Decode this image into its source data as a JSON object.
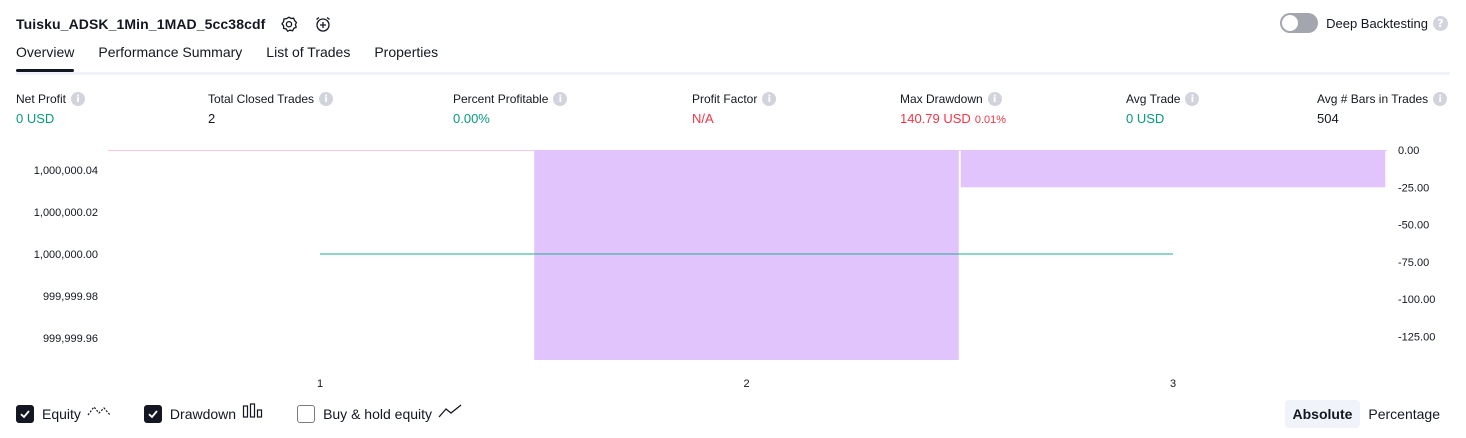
{
  "header": {
    "strategy_name": "Tuisku_ADSK_1Min_1MAD_5cc38cdf",
    "settings_icon": "settings-icon",
    "alert_icon": "alarm-plus-icon"
  },
  "deep_backtesting": {
    "label": "Deep Backtesting",
    "enabled": false,
    "help": "?"
  },
  "tabs": [
    {
      "label": "Overview",
      "active": true
    },
    {
      "label": "Performance Summary",
      "active": false
    },
    {
      "label": "List of Trades",
      "active": false
    },
    {
      "label": "Properties",
      "active": false
    }
  ],
  "metrics": [
    {
      "label": "Net Profit",
      "value": "0 USD",
      "color": "#089981"
    },
    {
      "label": "Total Closed Trades",
      "value": "2",
      "color": "#131722"
    },
    {
      "label": "Percent Profitable",
      "value": "0.00%",
      "color": "#089981"
    },
    {
      "label": "Profit Factor",
      "value": "N/A",
      "color": "#f23645"
    },
    {
      "label": "Max Drawdown",
      "value": "140.79 USD",
      "sub": "0.01%",
      "color": "#f23645"
    },
    {
      "label": "Avg Trade",
      "value": "0 USD",
      "color": "#089981"
    },
    {
      "label": "Avg # Bars in Trades",
      "value": "504",
      "color": "#131722"
    }
  ],
  "chart_data": {
    "type": "bar",
    "categories": [
      "1",
      "2",
      "3"
    ],
    "equity": {
      "type": "line",
      "x": [
        1,
        2,
        3
      ],
      "values": [
        1000000.0,
        1000000.0,
        1000000.0
      ],
      "color": "#22ab94"
    },
    "drawdown": {
      "type": "bar",
      "trade_ranges": [
        [
          1.5,
          2.5
        ],
        [
          2.5,
          3.5
        ]
      ],
      "values": [
        -140.79,
        -25.0
      ],
      "color": "#e1c4fc"
    },
    "left_axis": {
      "ticks": [
        "1,000,000.04",
        "1,000,000.02",
        "1,000,000.00",
        "999,999.98",
        "999,999.96"
      ],
      "tick_values": [
        1000000.04,
        1000000.02,
        1000000.0,
        999999.98,
        999999.96
      ]
    },
    "right_axis": {
      "ticks": [
        "0.00",
        "-25.00",
        "-50.00",
        "-75.00",
        "-100.00",
        "-125.00"
      ],
      "tick_values": [
        0,
        -25,
        -50,
        -75,
        -100,
        -125
      ],
      "range": [
        -140.79,
        0
      ]
    },
    "x_ticks": [
      "1",
      "2",
      "3"
    ]
  },
  "legend": [
    {
      "label": "Equity",
      "checked": true,
      "icon": "equity-line-icon"
    },
    {
      "label": "Drawdown",
      "checked": true,
      "icon": "drawdown-bars-icon"
    },
    {
      "label": "Buy & hold equity",
      "checked": false,
      "icon": "buy-hold-line-icon"
    }
  ],
  "mode": {
    "absolute": "Absolute",
    "percentage": "Percentage",
    "selected": "Absolute"
  }
}
